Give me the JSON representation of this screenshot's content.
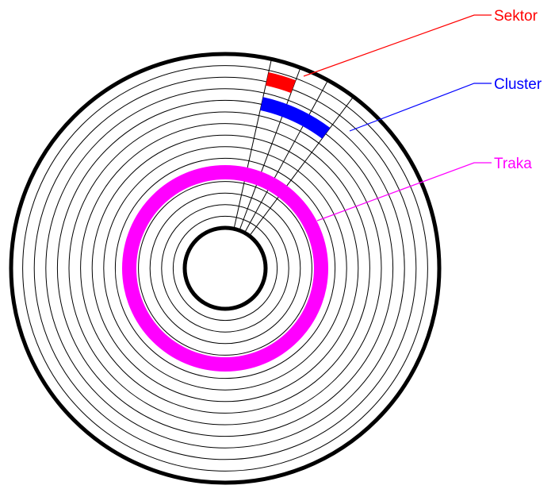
{
  "diagram": {
    "labels": {
      "sector": "Sektor",
      "cluster": "Cluster",
      "track": "Traka"
    },
    "colors": {
      "sector": "#ff0000",
      "cluster": "#0000ff",
      "track": "#ff00ff",
      "outline": "#000000",
      "background": "#ffffff"
    },
    "track_count": 14,
    "sector_dividers": 4
  }
}
